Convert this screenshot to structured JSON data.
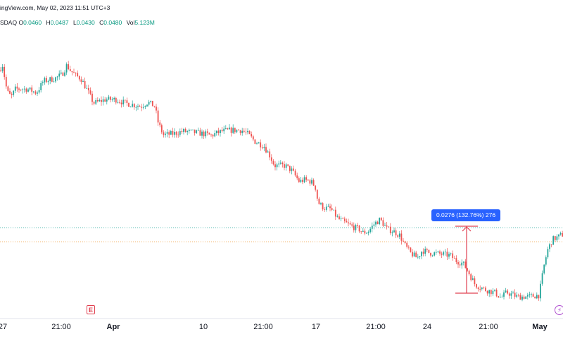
{
  "header": {
    "line1": "ingView.com, May 02, 2023 11:51 UTC+3",
    "symbol_tail": "SDAQ",
    "ohlc": [
      {
        "key": "O",
        "value": "0.0460"
      },
      {
        "key": "H",
        "value": "0.0487"
      },
      {
        "key": "L",
        "value": "0.0430"
      },
      {
        "key": "C",
        "value": "0.0480"
      },
      {
        "key": "Vol",
        "value": "5.123M"
      }
    ]
  },
  "measure_label": "0.0276 (132.76%) 276",
  "colors": {
    "up": "#26a69a",
    "down": "#ef5350",
    "measure": "#e04050",
    "label_bg": "#2962ff",
    "last_price_line": "#26a69a",
    "ref_line": "#f0a040"
  },
  "events": {
    "earnings_badge": "E",
    "flash_badge": "⚡"
  },
  "chart_data": {
    "type": "candlestick",
    "x_ticks": [
      {
        "label": "27",
        "bold": false
      },
      {
        "label": "21:00",
        "bold": false
      },
      {
        "label": "Apr",
        "bold": true
      },
      {
        "label": "10",
        "bold": false
      },
      {
        "label": "21:00",
        "bold": false
      },
      {
        "label": "17",
        "bold": false
      },
      {
        "label": "21:00",
        "bold": false
      },
      {
        "label": "24",
        "bold": false
      },
      {
        "label": "21:00",
        "bold": false
      },
      {
        "label": "May",
        "bold": true
      }
    ],
    "y_range": [
      0.018,
      0.072
    ],
    "grid": false,
    "measure": {
      "from": 0.0208,
      "to": 0.0484,
      "change": 0.0276,
      "percent": 132.76,
      "bars": 276
    },
    "path": [
      [
        0,
        0.064
      ],
      [
        3,
        0.0655
      ],
      [
        10,
        0.06
      ],
      [
        16,
        0.059
      ],
      [
        22,
        0.0605
      ],
      [
        38,
        0.0605
      ],
      [
        52,
        0.0598
      ],
      [
        62,
        0.062
      ],
      [
        78,
        0.0625
      ],
      [
        88,
        0.0632
      ],
      [
        95,
        0.065
      ],
      [
        100,
        0.064
      ],
      [
        108,
        0.063
      ],
      [
        115,
        0.0625
      ],
      [
        125,
        0.06
      ],
      [
        133,
        0.0578
      ],
      [
        150,
        0.0585
      ],
      [
        165,
        0.0585
      ],
      [
        178,
        0.0578
      ],
      [
        190,
        0.0575
      ],
      [
        200,
        0.0572
      ],
      [
        210,
        0.058
      ],
      [
        220,
        0.0572
      ],
      [
        225,
        0.054
      ],
      [
        232,
        0.0518
      ],
      [
        245,
        0.052
      ],
      [
        260,
        0.0525
      ],
      [
        275,
        0.0523
      ],
      [
        290,
        0.052
      ],
      [
        300,
        0.0517
      ],
      [
        315,
        0.0525
      ],
      [
        330,
        0.0527
      ],
      [
        343,
        0.0527
      ],
      [
        352,
        0.052
      ],
      [
        362,
        0.0506
      ],
      [
        375,
        0.0497
      ],
      [
        383,
        0.048
      ],
      [
        390,
        0.046
      ],
      [
        405,
        0.046
      ],
      [
        415,
        0.045
      ],
      [
        425,
        0.043
      ],
      [
        433,
        0.0433
      ],
      [
        442,
        0.043
      ],
      [
        448,
        0.042
      ],
      [
        452,
        0.039
      ],
      [
        460,
        0.038
      ],
      [
        470,
        0.0378
      ],
      [
        480,
        0.036
      ],
      [
        490,
        0.0352
      ],
      [
        500,
        0.0345
      ],
      [
        510,
        0.034
      ],
      [
        515,
        0.0333
      ],
      [
        523,
        0.0335
      ],
      [
        532,
        0.035
      ],
      [
        540,
        0.0358
      ],
      [
        550,
        0.034
      ],
      [
        560,
        0.0335
      ],
      [
        568,
        0.0328
      ],
      [
        575,
        0.031
      ],
      [
        583,
        0.0295
      ],
      [
        593,
        0.0285
      ],
      [
        600,
        0.03
      ],
      [
        610,
        0.0295
      ],
      [
        625,
        0.0293
      ],
      [
        640,
        0.029
      ],
      [
        648,
        0.028
      ],
      [
        658,
        0.0275
      ],
      [
        665,
        0.026
      ],
      [
        675,
        0.0235
      ],
      [
        690,
        0.0225
      ],
      [
        703,
        0.022
      ],
      [
        712,
        0.021
      ],
      [
        720,
        0.022
      ],
      [
        735,
        0.0212
      ],
      [
        750,
        0.0212
      ],
      [
        766,
        0.0215
      ],
      [
        773,
        0.027
      ],
      [
        778,
        0.03
      ],
      [
        785,
        0.032
      ],
      [
        793,
        0.0325
      ],
      [
        800,
        0.033
      ]
    ]
  }
}
